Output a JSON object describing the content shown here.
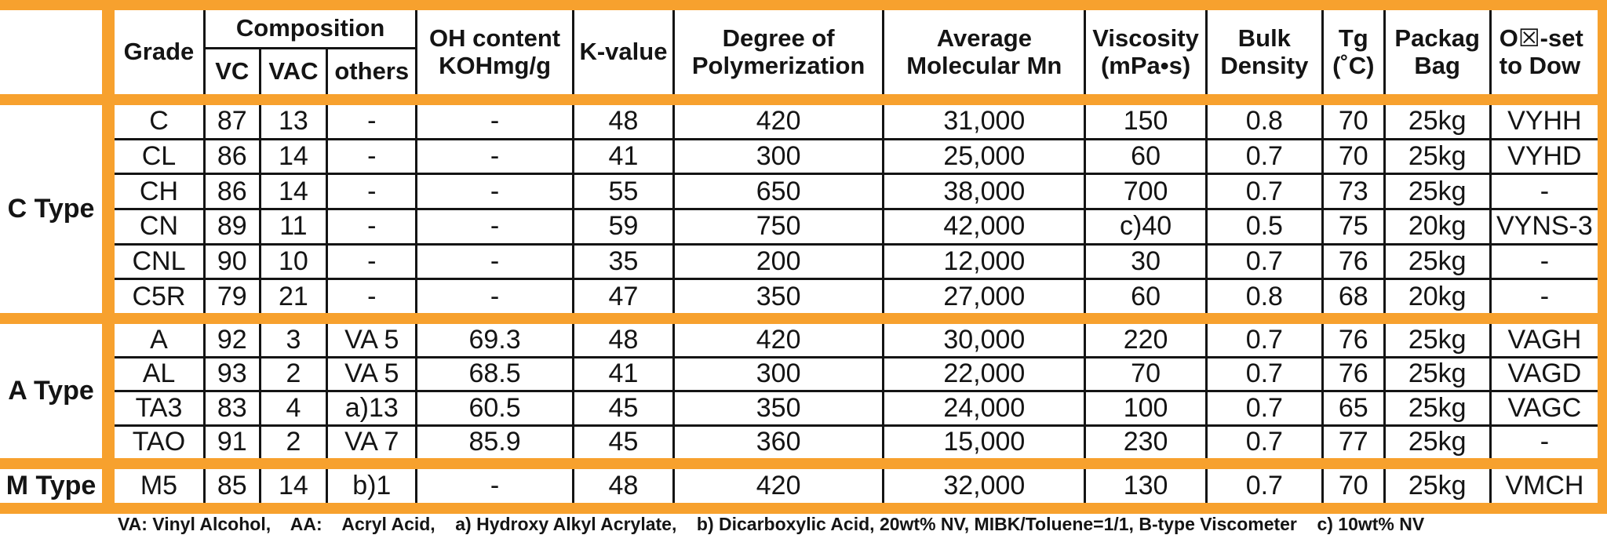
{
  "colors": {
    "accent_orange": "#F7A12E",
    "grid_line": "#141414",
    "text": "#141414",
    "background": "#FFFFFF"
  },
  "header": {
    "grade": "Grade",
    "composition": "Composition",
    "vc": "VC",
    "vac": "VAC",
    "others": "others",
    "oh_line1": "OH content",
    "oh_line2": "KOHmg/g",
    "k_value": "K-value",
    "dp_line1": "Degree of",
    "dp_line2": "Polymerization",
    "mn_line1": "Average",
    "mn_line2": "Molecular Mn",
    "visc_line1": "Viscosity",
    "visc_line2": "(mPa•s)",
    "bulk_line1": "Bulk",
    "bulk_line2": "Density",
    "tg_line1": "Tg",
    "tg_line2": "(˚C)",
    "pack_line1": "Packag",
    "pack_line2": "Bag",
    "offset_line1": "O☒-set",
    "offset_line2": "to Dow"
  },
  "column_keys": [
    "grade",
    "vc",
    "vac",
    "others",
    "oh_content",
    "k_value",
    "degree_polymerization",
    "avg_molecular_mn",
    "viscosity",
    "bulk_density",
    "tg",
    "package_bag",
    "offset_dow"
  ],
  "groups": [
    {
      "type_label": "C Type",
      "rows": [
        [
          "C",
          "87",
          "13",
          "-",
          "-",
          "48",
          "420",
          "31,000",
          "150",
          "0.8",
          "70",
          "25kg",
          "VYHH"
        ],
        [
          "CL",
          "86",
          "14",
          "-",
          "-",
          "41",
          "300",
          "25,000",
          "60",
          "0.7",
          "70",
          "25kg",
          "VYHD"
        ],
        [
          "CH",
          "86",
          "14",
          "-",
          "-",
          "55",
          "650",
          "38,000",
          "700",
          "0.7",
          "73",
          "25kg",
          "-"
        ],
        [
          "CN",
          "89",
          "11",
          "-",
          "-",
          "59",
          "750",
          "42,000",
          "c)40",
          "0.5",
          "75",
          "20kg",
          "VYNS-3"
        ],
        [
          "CNL",
          "90",
          "10",
          "-",
          "-",
          "35",
          "200",
          "12,000",
          "30",
          "0.7",
          "76",
          "25kg",
          "-"
        ],
        [
          "C5R",
          "79",
          "21",
          "-",
          "-",
          "47",
          "350",
          "27,000",
          "60",
          "0.8",
          "68",
          "20kg",
          "-"
        ]
      ]
    },
    {
      "type_label": "A Type",
      "rows": [
        [
          "A",
          "92",
          "3",
          "VA 5",
          "69.3",
          "48",
          "420",
          "30,000",
          "220",
          "0.7",
          "76",
          "25kg",
          "VAGH"
        ],
        [
          "AL",
          "93",
          "2",
          "VA 5",
          "68.5",
          "41",
          "300",
          "22,000",
          "70",
          "0.7",
          "76",
          "25kg",
          "VAGD"
        ],
        [
          "TA3",
          "83",
          "4",
          "a)13",
          "60.5",
          "45",
          "350",
          "24,000",
          "100",
          "0.7",
          "65",
          "25kg",
          "VAGC"
        ],
        [
          "TAO",
          "91",
          "2",
          "VA 7",
          "85.9",
          "45",
          "360",
          "15,000",
          "230",
          "0.7",
          "77",
          "25kg",
          "-"
        ]
      ]
    },
    {
      "type_label": "M Type",
      "rows": [
        [
          "M5",
          "85",
          "14",
          "b)1",
          "-",
          "48",
          "420",
          "32,000",
          "130",
          "0.7",
          "70",
          "25kg",
          "VMCH"
        ]
      ]
    }
  ],
  "footnote": "VA: Vinyl Alcohol,    AA:    Acryl Acid,    a) Hydroxy Alkyl Acrylate,    b) Dicarboxylic Acid, 20wt% NV, MIBK/Toluene=1/1, B-type Viscometer    c) 10wt% NV"
}
